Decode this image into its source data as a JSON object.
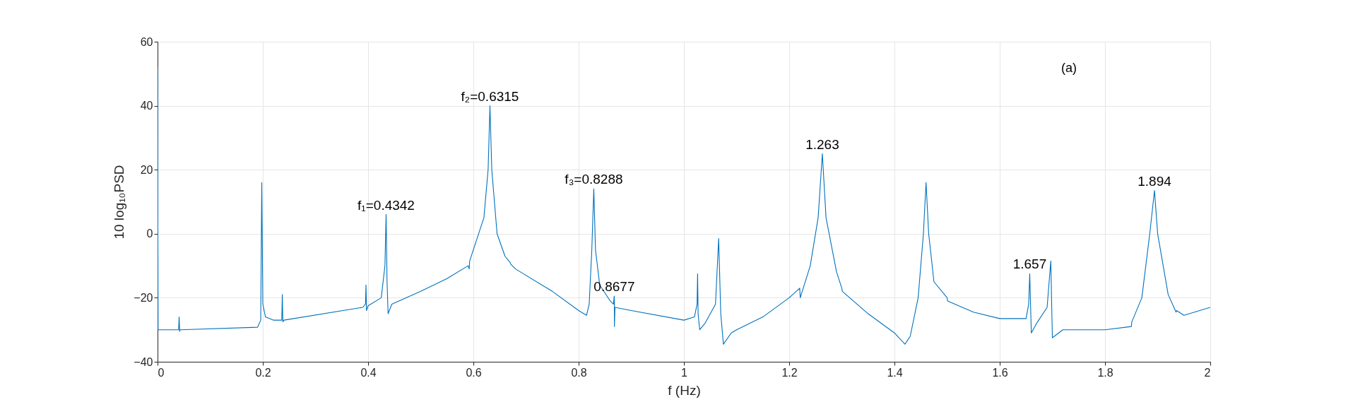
{
  "chart_data": {
    "type": "line",
    "xlabel": "f (Hz)",
    "ylabel": "10 log₁₀PSD",
    "xlim": [
      0,
      2
    ],
    "ylim": [
      -40,
      60
    ],
    "xticks": [
      0,
      0.2,
      0.4,
      0.6,
      0.8,
      1,
      1.2,
      1.4,
      1.6,
      1.8,
      2
    ],
    "yticks": [
      -40,
      -20,
      0,
      20,
      40,
      60
    ],
    "grid": true,
    "marker": "none",
    "line_style": "solid",
    "annotations": [
      {
        "text": "f₁=0.4342",
        "x": 0.4342,
        "y": 6
      },
      {
        "text": "f₂=0.6315",
        "x": 0.6315,
        "y": 40
      },
      {
        "text": "f₃=0.8288",
        "x": 0.8288,
        "y": 14
      },
      {
        "text": "0.8677",
        "x": 0.8677,
        "y": -19.5
      },
      {
        "text": "1.263",
        "x": 1.263,
        "y": 25
      },
      {
        "text": "1.657",
        "x": 1.657,
        "y": -12.5
      },
      {
        "text": "1.894",
        "x": 1.894,
        "y": 13.5
      },
      "(a)"
    ],
    "series": [
      {
        "color": "#0072bd",
        "x": [
          0,
          0.001,
          0.04,
          0.041,
          0.042,
          0.043,
          0.19,
          0.196,
          0.198,
          0.2,
          0.205,
          0.22,
          0.236,
          0.237,
          0.238,
          0.24,
          0.39,
          0.395,
          0.396,
          0.397,
          0.4,
          0.425,
          0.432,
          0.4342,
          0.436,
          0.438,
          0.445,
          0.5,
          0.55,
          0.59,
          0.592,
          0.593,
          0.6,
          0.62,
          0.628,
          0.6315,
          0.635,
          0.645,
          0.66,
          0.67,
          0.671,
          0.68,
          0.75,
          0.8,
          0.815,
          0.82,
          0.825,
          0.8288,
          0.832,
          0.84,
          0.86,
          0.866,
          0.8677,
          0.868,
          0.869,
          0.9,
          1.0,
          1.02,
          1.025,
          1.026,
          1.027,
          1.03,
          1.04,
          1.06,
          1.066,
          1.07,
          1.075,
          1.09,
          1.1,
          1.15,
          1.2,
          1.22,
          1.221,
          1.24,
          1.255,
          1.263,
          1.27,
          1.29,
          1.3,
          1.301,
          1.35,
          1.4,
          1.42,
          1.43,
          1.445,
          1.455,
          1.46,
          1.465,
          1.475,
          1.5,
          1.501,
          1.55,
          1.6,
          1.65,
          1.655,
          1.657,
          1.66,
          1.67,
          1.69,
          1.697,
          1.7,
          1.72,
          1.8,
          1.85,
          1.851,
          1.87,
          1.885,
          1.894,
          1.9,
          1.92,
          1.935,
          1.936,
          1.95,
          2.0
        ],
        "values": [
          52,
          -30,
          -30,
          -26,
          -30.5,
          -30,
          -29.2,
          -27,
          16,
          -22,
          -26,
          -27,
          -27,
          -19,
          -27.5,
          -27,
          -23,
          -22,
          -16,
          -24,
          -22.5,
          -20,
          -10,
          6,
          -15,
          -25,
          -22,
          -18,
          -14,
          -10,
          -11,
          -8.5,
          -5,
          5,
          20,
          40,
          20,
          0,
          -7,
          -9,
          -9.5,
          -11,
          -18,
          -24,
          -25.5,
          -22,
          -5,
          14,
          -5,
          -16,
          -21,
          -22,
          -19.5,
          -29,
          -23,
          -24,
          -27,
          -26,
          -22,
          -12.5,
          -25,
          -30,
          -28,
          -22,
          -1.5,
          -25,
          -34.5,
          -31,
          -30,
          -26,
          -20,
          -17,
          -20,
          -10,
          5,
          25,
          5,
          -12,
          -17,
          -18,
          -25,
          -31,
          -34.5,
          -32,
          -20,
          0,
          16,
          0,
          -15,
          -20,
          -21,
          -24.5,
          -26.5,
          -26.5,
          -22,
          -12.5,
          -31,
          -28,
          -23,
          -8.5,
          -32.5,
          -30,
          -30,
          -29,
          -27.5,
          -20,
          0,
          13.5,
          0,
          -19,
          -24.5,
          -24,
          -25.5,
          -23
        ]
      }
    ]
  }
}
